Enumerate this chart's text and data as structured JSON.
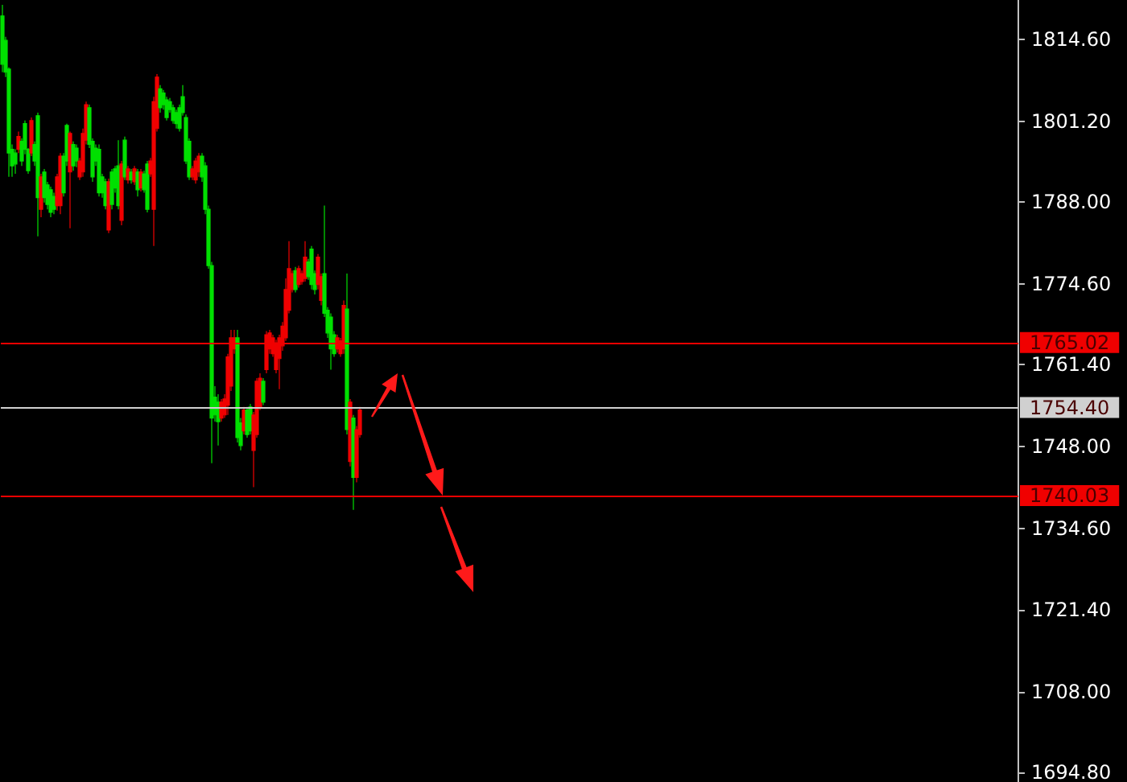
{
  "chart_data": {
    "type": "candlestick",
    "categories": [
      null,
      null,
      null,
      null,
      null,
      null,
      null,
      null,
      null,
      null,
      null,
      null,
      null,
      null,
      null,
      null,
      null,
      null,
      null,
      null,
      null,
      null,
      null,
      null,
      null,
      null,
      null,
      null,
      null,
      null,
      null,
      null,
      null,
      null,
      null,
      null,
      null,
      null,
      null,
      null,
      null,
      null,
      null,
      null,
      null,
      null,
      null,
      null,
      null,
      null,
      null,
      null,
      null,
      null,
      null,
      null,
      null,
      null,
      null,
      null,
      null,
      null,
      null,
      null,
      null,
      null,
      null,
      null,
      null,
      null,
      null,
      null,
      null,
      null,
      null,
      null,
      null,
      null,
      null,
      null,
      null,
      null,
      null,
      null,
      null,
      null,
      null,
      null,
      null,
      null,
      null,
      null,
      null,
      null,
      null,
      null,
      null,
      null,
      null,
      null,
      null,
      null,
      null,
      null,
      null,
      null,
      null,
      null,
      null,
      null,
      null,
      null,
      null,
      null,
      null,
      null,
      null,
      null,
      null,
      null,
      null,
      null,
      null,
      null,
      null,
      null,
      null,
      null,
      null,
      null,
      null,
      null,
      null,
      null,
      null,
      null,
      null,
      null,
      null,
      null,
      null,
      null,
      null,
      null,
      null,
      null,
      null,
      null,
      null,
      null,
      null,
      null,
      null,
      null,
      null,
      null,
      null,
      null,
      null,
      null,
      null,
      null,
      null,
      null,
      null,
      null,
      null,
      null,
      null,
      null,
      null,
      null,
      null,
      null,
      null,
      null,
      null,
      null,
      null,
      null,
      null,
      null,
      null,
      null,
      null,
      null,
      null,
      null,
      null,
      null,
      null,
      null,
      null,
      null,
      null,
      null,
      null,
      null,
      null,
      null,
      null,
      null,
      null,
      null,
      null,
      null,
      null,
      null,
      null,
      null,
      null,
      null,
      null,
      null,
      null,
      null,
      null,
      null,
      null,
      null,
      null,
      null,
      null,
      null,
      null,
      null,
      null,
      null,
      null,
      null,
      null,
      null,
      null,
      null,
      null,
      null,
      null,
      null,
      null,
      null,
      null,
      null,
      null,
      null,
      null,
      null,
      null,
      null,
      null,
      null,
      null,
      null,
      null,
      null,
      null,
      null,
      null,
      null,
      null,
      null,
      null,
      null,
      null,
      null,
      null,
      null,
      null,
      null,
      null,
      null,
      null,
      null,
      null,
      null,
      null,
      null,
      null,
      null,
      null,
      null,
      null,
      null,
      null,
      null,
      null,
      null,
      null,
      null,
      null,
      null,
      null,
      null,
      null,
      null,
      null,
      null,
      null,
      null,
      null,
      null,
      null,
      null,
      null,
      null,
      null,
      null,
      null,
      null,
      null,
      null,
      null,
      null,
      null,
      null,
      null,
      null
    ],
    "ohlc": [
      [
        1818.4,
        1820.2,
        1809.2,
        1810.5
      ],
      [
        1814.4,
        1815.0,
        1808.4,
        1809.2
      ],
      [
        1809.7,
        1810.0,
        1792.1,
        1796.0
      ],
      [
        1796.6,
        1797.4,
        1792.1,
        1793.9
      ],
      [
        1796.0,
        1796.6,
        1792.6,
        1794.2
      ],
      [
        1796.6,
        1799.5,
        1796.0,
        1798.7
      ],
      [
        1797.9,
        1798.4,
        1793.9,
        1794.7
      ],
      [
        1800.8,
        1801.3,
        1795.8,
        1796.6
      ],
      [
        1796.6,
        1796.8,
        1792.6,
        1793.1
      ],
      [
        1796.0,
        1801.8,
        1795.5,
        1801.3
      ],
      [
        1797.4,
        1797.9,
        1793.9,
        1794.7
      ],
      [
        1802.1,
        1802.6,
        1782.4,
        1788.7
      ],
      [
        1786.8,
        1792.6,
        1785.5,
        1792.1
      ],
      [
        1792.9,
        1793.4,
        1787.9,
        1788.7
      ],
      [
        1790.8,
        1791.3,
        1786.8,
        1787.6
      ],
      [
        1790.0,
        1790.5,
        1785.5,
        1786.3
      ],
      [
        1788.9,
        1789.5,
        1786.0,
        1786.8
      ],
      [
        1787.4,
        1792.6,
        1786.6,
        1792.1
      ],
      [
        1787.4,
        1796.0,
        1786.0,
        1795.5
      ],
      [
        1795.5,
        1796.0,
        1788.9,
        1789.5
      ],
      [
        1800.5,
        1800.8,
        1793.9,
        1794.7
      ],
      [
        1792.9,
        1799.5,
        1783.7,
        1799.2
      ],
      [
        1797.4,
        1797.9,
        1793.1,
        1793.9
      ],
      [
        1796.8,
        1797.4,
        1793.7,
        1794.7
      ],
      [
        1792.1,
        1795.2,
        1791.6,
        1794.7
      ],
      [
        1792.9,
        1800.0,
        1792.1,
        1799.2
      ],
      [
        1798.1,
        1804.4,
        1797.4,
        1803.9
      ],
      [
        1803.4,
        1803.9,
        1796.8,
        1797.4
      ],
      [
        1797.9,
        1798.4,
        1791.3,
        1792.1
      ],
      [
        1796.8,
        1797.4,
        1793.9,
        1794.7
      ],
      [
        1796.6,
        1797.4,
        1788.9,
        1789.5
      ],
      [
        1792.1,
        1792.6,
        1788.7,
        1789.5
      ],
      [
        1791.3,
        1791.8,
        1786.8,
        1787.4
      ],
      [
        1783.4,
        1791.8,
        1782.9,
        1791.3
      ],
      [
        1792.9,
        1793.4,
        1786.8,
        1787.6
      ],
      [
        1793.4,
        1793.9,
        1789.5,
        1790.3
      ],
      [
        1793.9,
        1798.1,
        1786.8,
        1787.4
      ],
      [
        1785.0,
        1794.7,
        1784.2,
        1794.2
      ],
      [
        1798.1,
        1798.7,
        1791.6,
        1792.1
      ],
      [
        1791.6,
        1793.9,
        1791.0,
        1793.4
      ],
      [
        1792.9,
        1793.4,
        1791.0,
        1791.6
      ],
      [
        1791.3,
        1793.9,
        1790.8,
        1793.4
      ],
      [
        1792.9,
        1793.4,
        1788.9,
        1790.0
      ],
      [
        1790.3,
        1793.4,
        1789.7,
        1792.9
      ],
      [
        1792.6,
        1793.1,
        1789.5,
        1790.0
      ],
      [
        1794.2,
        1794.7,
        1786.3,
        1786.8
      ],
      [
        1792.6,
        1795.2,
        1792.1,
        1794.7
      ],
      [
        1786.8,
        1805.2,
        1780.8,
        1804.4
      ],
      [
        1800.0,
        1808.9,
        1799.5,
        1808.4
      ],
      [
        1806.5,
        1807.1,
        1802.6,
        1803.4
      ],
      [
        1805.8,
        1806.3,
        1803.1,
        1803.9
      ],
      [
        1804.7,
        1805.2,
        1801.3,
        1801.8
      ],
      [
        1804.4,
        1805.0,
        1802.6,
        1803.1
      ],
      [
        1803.4,
        1803.9,
        1800.8,
        1801.3
      ],
      [
        1802.6,
        1803.1,
        1800.0,
        1800.8
      ],
      [
        1803.4,
        1803.9,
        1799.5,
        1800.0
      ],
      [
        1805.2,
        1807.1,
        1802.1,
        1802.6
      ],
      [
        1801.8,
        1802.3,
        1794.2,
        1794.7
      ],
      [
        1797.9,
        1798.4,
        1791.6,
        1792.1
      ],
      [
        1792.1,
        1793.9,
        1791.6,
        1793.4
      ],
      [
        1791.6,
        1795.2,
        1791.0,
        1794.7
      ],
      [
        1792.9,
        1796.0,
        1792.1,
        1795.5
      ],
      [
        1795.5,
        1796.0,
        1791.3,
        1792.1
      ],
      [
        1793.9,
        1794.5,
        1786.0,
        1786.8
      ],
      [
        1786.8,
        1787.4,
        1777.1,
        1777.6
      ],
      [
        1777.6,
        1778.2,
        1745.3,
        1752.7
      ],
      [
        1756.1,
        1757.9,
        1752.1,
        1753.2
      ],
      [
        1755.3,
        1756.6,
        1748.2,
        1752.1
      ],
      [
        1752.7,
        1755.8,
        1752.1,
        1755.3
      ],
      [
        1753.2,
        1756.6,
        1752.7,
        1755.8
      ],
      [
        1754.8,
        1763.2,
        1753.2,
        1762.7
      ],
      [
        1757.9,
        1767.1,
        1757.1,
        1765.8
      ],
      [
        1764.0,
        1767.1,
        1763.2,
        1765.8
      ],
      [
        1765.8,
        1767.1,
        1748.7,
        1749.5
      ],
      [
        1751.9,
        1752.7,
        1747.4,
        1748.2
      ],
      [
        1750.6,
        1754.5,
        1750.0,
        1754.0
      ],
      [
        1754.0,
        1754.5,
        1749.5,
        1750.0
      ],
      [
        1754.5,
        1755.0,
        1750.0,
        1750.6
      ],
      [
        1747.4,
        1753.7,
        1741.4,
        1753.2
      ],
      [
        1750.0,
        1759.2,
        1749.5,
        1758.7
      ],
      [
        1754.5,
        1760.0,
        1754.0,
        1759.2
      ],
      [
        1758.7,
        1759.2,
        1754.8,
        1755.3
      ],
      [
        1760.6,
        1766.9,
        1760.0,
        1766.3
      ],
      [
        1764.0,
        1767.1,
        1763.2,
        1766.6
      ],
      [
        1763.2,
        1766.3,
        1762.7,
        1765.8
      ],
      [
        1760.6,
        1765.5,
        1760.0,
        1765.0
      ],
      [
        1762.4,
        1766.3,
        1757.4,
        1765.8
      ],
      [
        1764.5,
        1768.4,
        1763.7,
        1767.7
      ],
      [
        1765.8,
        1775.5,
        1765.3,
        1773.7
      ],
      [
        1770.3,
        1781.6,
        1769.8,
        1777.1
      ],
      [
        1773.7,
        1776.8,
        1773.2,
        1776.3
      ],
      [
        1776.8,
        1777.4,
        1773.2,
        1773.7
      ],
      [
        1774.5,
        1777.6,
        1774.0,
        1777.1
      ],
      [
        1775.0,
        1776.8,
        1774.5,
        1776.3
      ],
      [
        1775.5,
        1781.6,
        1775.0,
        1779.0
      ],
      [
        1778.2,
        1778.7,
        1775.3,
        1775.8
      ],
      [
        1780.3,
        1780.8,
        1773.7,
        1774.5
      ],
      [
        1776.3,
        1776.8,
        1772.9,
        1773.7
      ],
      [
        1774.5,
        1779.5,
        1773.7,
        1779.0
      ],
      [
        1771.9,
        1776.3,
        1771.1,
        1775.8
      ],
      [
        1776.3,
        1787.4,
        1769.2,
        1769.8
      ],
      [
        1770.3,
        1770.8,
        1765.8,
        1766.6
      ],
      [
        1769.2,
        1769.8,
        1760.6,
        1764.0
      ],
      [
        1766.3,
        1766.9,
        1762.7,
        1763.2
      ],
      [
        1764.0,
        1766.3,
        1763.4,
        1765.8
      ],
      [
        1763.2,
        1765.8,
        1762.7,
        1765.3
      ],
      [
        1764.0,
        1771.9,
        1763.2,
        1771.1
      ],
      [
        1770.5,
        1776.3,
        1750.0,
        1750.8
      ],
      [
        1745.6,
        1755.8,
        1744.8,
        1755.3
      ],
      [
        1752.7,
        1753.2,
        1737.7,
        1743.0
      ],
      [
        1743.0,
        1751.4,
        1742.2,
        1750.8
      ],
      [
        1750.0,
        1754.5,
        1749.5,
        1754.0
      ],
      null,
      null,
      null,
      null,
      null,
      null,
      null,
      null,
      null,
      null,
      null,
      null,
      null,
      null,
      null,
      null,
      null,
      null,
      null,
      null,
      null,
      null,
      null,
      null,
      null,
      null,
      null,
      null,
      null,
      null,
      null,
      null,
      null,
      null,
      null,
      null,
      null,
      null,
      null,
      null,
      null,
      null,
      null,
      null,
      null,
      null,
      null,
      null,
      null,
      null,
      null,
      null,
      null,
      null,
      null,
      null,
      null,
      null,
      null,
      null,
      null,
      null,
      null,
      null,
      null,
      null,
      null,
      null,
      null,
      null,
      null,
      null,
      null,
      null,
      null,
      null,
      null,
      null,
      null,
      null,
      null,
      null,
      null,
      null,
      null,
      null,
      null,
      null,
      null,
      null,
      null,
      null,
      null,
      null,
      null,
      null,
      null,
      null,
      null,
      null,
      null,
      null,
      null,
      null,
      null,
      null,
      null,
      null,
      null,
      null,
      null,
      null,
      null,
      null,
      null,
      null,
      null,
      null,
      null,
      null,
      null,
      null,
      null,
      null,
      null,
      null,
      null,
      null,
      null,
      null,
      null,
      null,
      null,
      null,
      null,
      null,
      null,
      null,
      null,
      null,
      null,
      null,
      null,
      null,
      null,
      null,
      null,
      null,
      null,
      null,
      null,
      null,
      null,
      null,
      null,
      null,
      null,
      null,
      null,
      null,
      null,
      null,
      null,
      null,
      null,
      null,
      null,
      null,
      null,
      null,
      null,
      null,
      null,
      null,
      null,
      null,
      null,
      null,
      null,
      null,
      null,
      null,
      null,
      null,
      null,
      null,
      null,
      null,
      null,
      null,
      null,
      null,
      null,
      null,
      null,
      null,
      null,
      null,
      null,
      null,
      null,
      null,
      null,
      null
    ],
    "colors": [
      "#00e000",
      "#00e000",
      "#00e000",
      "#00e000",
      "#00e000",
      "#f00000",
      "#00e000",
      "#00e000",
      "#00e000",
      "#f00000",
      "#00e000",
      "#00e000",
      "#f00000",
      "#00e000",
      "#00e000",
      "#00e000",
      "#00e000",
      "#f00000",
      "#f00000",
      "#00e000",
      "#00e000",
      "#f00000",
      "#00e000",
      "#00e000",
      "#f00000",
      "#f00000",
      "#f00000",
      "#00e000",
      "#00e000",
      "#00e000",
      "#00e000",
      "#00e000",
      "#00e000",
      "#f00000",
      "#00e000",
      "#00e000",
      "#00e000",
      "#f00000",
      "#00e000",
      "#f00000",
      "#00e000",
      "#f00000",
      "#00e000",
      "#f00000",
      "#00e000",
      "#00e000",
      "#f00000",
      "#f00000",
      "#f00000",
      "#00e000",
      "#00e000",
      "#00e000",
      "#00e000",
      "#00e000",
      "#00e000",
      "#00e000",
      "#00e000",
      "#00e000",
      "#00e000",
      "#f00000",
      "#f00000",
      "#f00000",
      "#00e000",
      "#00e000",
      "#00e000",
      "#00e000",
      "#00e000",
      "#00e000",
      "#f00000",
      "#f00000",
      "#f00000",
      "#f00000",
      "#f00000",
      "#00e000",
      "#00e000",
      "#f00000",
      "#00e000",
      "#00e000",
      "#f00000",
      "#f00000",
      "#f00000",
      "#00e000",
      "#f00000",
      "#f00000",
      "#f00000",
      "#f00000",
      "#f00000",
      "#f00000",
      "#f00000",
      "#f00000",
      "#f00000",
      "#00e000",
      "#f00000",
      "#f00000",
      "#f00000",
      "#00e000",
      "#00e000",
      "#00e000",
      "#f00000",
      "#f00000",
      "#00e000",
      "#00e000",
      "#00e000",
      "#00e000",
      "#f00000",
      "#f00000",
      "#f00000",
      "#00e000",
      "#f00000",
      "#00e000",
      "#f00000",
      "#f00000",
      null,
      null,
      null,
      null,
      null,
      null,
      null,
      null,
      null,
      null,
      null,
      null,
      null,
      null,
      null,
      null,
      null,
      null,
      null,
      null,
      null,
      null,
      null,
      null,
      null,
      null,
      null,
      null,
      null,
      null,
      null,
      null,
      null,
      null,
      null,
      null,
      null,
      null,
      null,
      null,
      null,
      null,
      null,
      null,
      null,
      null,
      null,
      null,
      null,
      null,
      null,
      null,
      null,
      null,
      null,
      null,
      null,
      null,
      null,
      null,
      null,
      null,
      null,
      null,
      null,
      null,
      null,
      null,
      null,
      null,
      null,
      null,
      null,
      null,
      null,
      null,
      null,
      null,
      null,
      null,
      null,
      null,
      null,
      null,
      null,
      null,
      null,
      null,
      null,
      null,
      null,
      null,
      null,
      null,
      null,
      null,
      null,
      null,
      null,
      null,
      null,
      null,
      null,
      null,
      null,
      null,
      null,
      null,
      null,
      null,
      null,
      null,
      null,
      null,
      null,
      null,
      null,
      null,
      null,
      null,
      null,
      null,
      null,
      null,
      null,
      null,
      null,
      null,
      null,
      null,
      null,
      null,
      null,
      null,
      null,
      null,
      null,
      null,
      null,
      null,
      null,
      null,
      null,
      null,
      null,
      null,
      null,
      null,
      null,
      null,
      null,
      null,
      null,
      null,
      null,
      null,
      null,
      null,
      null,
      null,
      null,
      null,
      null,
      null,
      null,
      null,
      null,
      null,
      null,
      null,
      null,
      null,
      null,
      null,
      null,
      null,
      null,
      null,
      null,
      null,
      null,
      null,
      null,
      null,
      null,
      null,
      null,
      null,
      null,
      null,
      null,
      null,
      null,
      null,
      null,
      null,
      null,
      null,
      null,
      null,
      null,
      null,
      null,
      null
    ],
    "ylim": [
      1693.3,
      1821.0
    ],
    "yticks": [
      {
        "value": 1814.6,
        "label": "1814.60"
      },
      {
        "value": 1801.2,
        "label": "1801.20"
      },
      {
        "value": 1788,
        "label": "1788.00"
      },
      {
        "value": 1774.6,
        "label": "1774.60"
      },
      {
        "value": 1761.4,
        "label": "1761.40"
      },
      {
        "value": 1748,
        "label": "1748.00"
      },
      {
        "value": 1734.6,
        "label": "1734.60"
      },
      {
        "value": 1721.4,
        "label": "1721.40"
      },
      {
        "value": 1708,
        "label": "1708.00"
      },
      {
        "value": 1694.8,
        "label": "1694.80"
      }
    ],
    "tick_labels": "y",
    "ref_lines": [
      {
        "axis": "y",
        "value": 1765.02,
        "label": "1765.02",
        "color": "#f00000"
      },
      {
        "axis": "y",
        "value": 1754.4,
        "label": "1754.40",
        "color": "#d0d0d0"
      },
      {
        "axis": "y",
        "value": 1740.03,
        "label": "1740.03",
        "color": "#f00000"
      }
    ]
  }
}
